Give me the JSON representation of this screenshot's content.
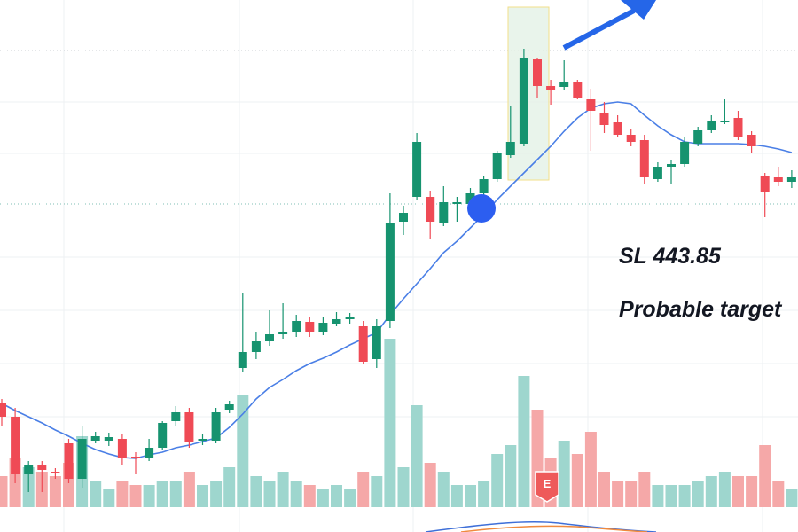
{
  "chart_data": {
    "type": "candlestick",
    "annotations": [
      "SL 443.85",
      "Probable target"
    ],
    "earnings_marker": "E",
    "ylim": [
      0,
      600
    ],
    "volume_lim": [
      0,
      600
    ],
    "up_color": "#16936f",
    "down_color": "#ef4a55",
    "volume_up_color": "#9ed6ce",
    "volume_down_color": "#f5a8a8",
    "ma_color": "#4a7fe6",
    "open": [
      145,
      130,
      65,
      75,
      68,
      100,
      60,
      103,
      103,
      105,
      85,
      83,
      95,
      125,
      135,
      103,
      103,
      138,
      185,
      203,
      215,
      223,
      225,
      237,
      225,
      235,
      240,
      232,
      195,
      238,
      350,
      378,
      378,
      348,
      370,
      370,
      382,
      398,
      425,
      438,
      533,
      503,
      502,
      507,
      488,
      473,
      462,
      448,
      442,
      398,
      412,
      415,
      438,
      453,
      462,
      467,
      448,
      402,
      400,
      395
    ],
    "high": [
      150,
      140,
      80,
      80,
      72,
      105,
      120,
      113,
      112,
      110,
      90,
      105,
      125,
      142,
      140,
      110,
      140,
      148,
      270,
      225,
      250,
      258,
      245,
      242,
      242,
      248,
      247,
      238,
      240,
      382,
      368,
      450,
      385,
      390,
      378,
      388,
      402,
      430,
      480,
      545,
      535,
      510,
      532,
      510,
      500,
      485,
      470,
      455,
      448,
      417,
      420,
      445,
      457,
      470,
      488,
      475,
      452,
      405,
      412,
      408
    ],
    "low": [
      120,
      55,
      45,
      45,
      60,
      55,
      50,
      100,
      97,
      75,
      65,
      80,
      92,
      120,
      95,
      98,
      100,
      134,
      180,
      195,
      210,
      218,
      220,
      220,
      222,
      232,
      235,
      190,
      185,
      230,
      335,
      375,
      330,
      345,
      350,
      360,
      375,
      395,
      422,
      435,
      490,
      482,
      498,
      488,
      430,
      450,
      445,
      435,
      392,
      395,
      392,
      412,
      435,
      450,
      460,
      442,
      428,
      355,
      390,
      388
    ],
    "close": [
      130,
      65,
      75,
      70,
      67,
      60,
      105,
      108,
      107,
      83,
      83,
      95,
      123,
      135,
      102,
      105,
      135,
      144,
      203,
      215,
      223,
      225,
      238,
      225,
      236,
      240,
      243,
      192,
      232,
      348,
      360,
      440,
      350,
      372,
      372,
      382,
      398,
      427,
      440,
      535,
      503,
      498,
      508,
      490,
      475,
      459,
      448,
      440,
      400,
      412,
      415,
      440,
      453,
      463,
      464,
      445,
      435,
      383,
      395,
      400
    ],
    "volume": [
      35,
      55,
      45,
      40,
      35,
      50,
      80,
      30,
      20,
      30,
      25,
      25,
      30,
      30,
      40,
      25,
      30,
      45,
      127,
      35,
      30,
      40,
      30,
      25,
      20,
      25,
      20,
      40,
      35,
      190,
      45,
      115,
      50,
      40,
      25,
      25,
      30,
      60,
      70,
      148,
      110,
      55,
      75,
      60,
      85,
      40,
      30,
      30,
      40,
      25,
      25,
      25,
      30,
      35,
      40,
      35,
      35,
      70,
      30,
      20
    ],
    "ma": [
      145,
      137,
      130,
      123,
      115,
      108,
      100,
      93,
      88,
      84,
      83,
      87,
      90,
      95,
      98,
      102,
      106,
      118,
      133,
      150,
      163,
      172,
      182,
      190,
      196,
      203,
      211,
      218,
      225,
      245,
      263,
      280,
      297,
      315,
      328,
      343,
      358,
      375,
      390,
      405,
      420,
      435,
      452,
      467,
      478,
      483,
      485,
      483,
      470,
      458,
      448,
      440,
      438,
      438,
      438,
      438,
      437,
      435,
      432,
      428
    ]
  }
}
